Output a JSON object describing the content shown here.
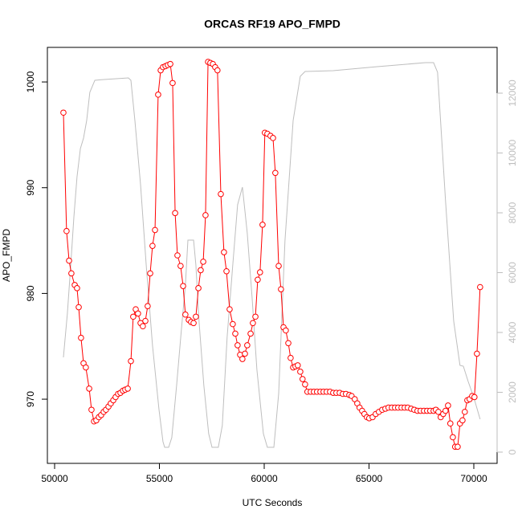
{
  "chart_data": {
    "type": "line",
    "title": "ORCAS RF19 APO_FMPD",
    "xlabel": "UTC Seconds",
    "ylabel": "APO_FMPD",
    "xlim": [
      49655,
      71111
    ],
    "xticks": [
      50000,
      55000,
      60000,
      65000,
      70000
    ],
    "ylim": [
      963.93,
      1003.27
    ],
    "yticks": [
      970,
      980,
      990,
      1000
    ],
    "y2lim": [
      -376,
      13530
    ],
    "y2ticks": [
      0,
      2000,
      4000,
      6000,
      8000,
      10000,
      12000
    ],
    "series": [
      {
        "color": "#bebebe",
        "axis": "y2",
        "markers": false,
        "x": [
          50420,
          50610,
          50770,
          50920,
          51070,
          51230,
          51380,
          51530,
          51680,
          51920,
          52370,
          53520,
          53640,
          53830,
          54100,
          54370,
          54670,
          54980,
          55170,
          55250,
          55440,
          55590,
          55820,
          56050,
          56240,
          56360,
          56630,
          56740,
          56890,
          57120,
          57350,
          57510,
          57810,
          58000,
          58230,
          58500,
          58730,
          58960,
          59190,
          59420,
          59650,
          59960,
          60150,
          60460,
          60690,
          60990,
          61380,
          61720,
          61950,
          63290,
          65400,
          67690,
          68080,
          68270,
          68650,
          69040,
          69340,
          69500,
          69730,
          70000,
          70300
        ],
        "values": [
          3168,
          4644,
          6255,
          7866,
          9208,
          10148,
          10497,
          11087,
          12027,
          12430,
          12456,
          12510,
          12430,
          11087,
          8940,
          6255,
          3570,
          1423,
          349,
          161,
          161,
          483,
          2228,
          4107,
          5584,
          7087,
          7087,
          6255,
          4376,
          2228,
          617,
          161,
          161,
          886,
          3839,
          6255,
          8268,
          8859,
          7329,
          5181,
          2765,
          617,
          161,
          161,
          1960,
          7060,
          11087,
          12564,
          12725,
          12752,
          12886,
          13020,
          13020,
          12698,
          8403,
          4376,
          2899,
          2872,
          2362,
          1826,
          1101
        ]
      },
      {
        "color": "#ff0000",
        "axis": "y",
        "markers": true,
        "x": [
          50420,
          50570,
          50690,
          50800,
          50960,
          51070,
          51150,
          51260,
          51380,
          51490,
          51650,
          51760,
          51880,
          51990,
          52110,
          52220,
          52340,
          52450,
          52570,
          52680,
          52800,
          52910,
          53030,
          53140,
          53260,
          53370,
          53490,
          53640,
          53750,
          53870,
          53980,
          54100,
          54210,
          54330,
          54440,
          54560,
          54670,
          54790,
          54940,
          55060,
          55170,
          55290,
          55400,
          55520,
          55630,
          55750,
          55860,
          56010,
          56130,
          56240,
          56400,
          56510,
          56630,
          56740,
          56860,
          56970,
          57090,
          57200,
          57320,
          57430,
          57550,
          57660,
          57770,
          57930,
          58080,
          58200,
          58350,
          58500,
          58620,
          58730,
          58850,
          58960,
          59080,
          59190,
          59350,
          59460,
          59580,
          59690,
          59800,
          59920,
          60030,
          60150,
          60300,
          60420,
          60530,
          60690,
          60800,
          60920,
          61030,
          61150,
          61260,
          61380,
          61490,
          61600,
          61720,
          61830,
          61950,
          62060,
          62220,
          62370,
          62520,
          62680,
          62830,
          62980,
          63140,
          63290,
          63440,
          63600,
          63750,
          63900,
          64060,
          64170,
          64320,
          64440,
          64550,
          64670,
          64780,
          64900,
          65010,
          65170,
          65320,
          65470,
          65630,
          65780,
          65930,
          66090,
          66240,
          66390,
          66550,
          66700,
          66850,
          67010,
          67160,
          67310,
          67460,
          67620,
          67770,
          67920,
          68080,
          68190,
          68310,
          68420,
          68540,
          68650,
          68770,
          68880,
          69000,
          69110,
          69230,
          69340,
          69460,
          69570,
          69690,
          69800,
          69920,
          70030,
          70150,
          70300
        ],
        "values": [
          997.1,
          985.9,
          983.1,
          981.9,
          980.8,
          980.5,
          978.7,
          975.8,
          973.4,
          973.0,
          971.0,
          969.0,
          967.9,
          968.0,
          968.3,
          968.5,
          968.8,
          969.0,
          969.3,
          969.6,
          969.9,
          970.2,
          970.5,
          970.6,
          970.8,
          970.9,
          971.0,
          973.6,
          977.8,
          978.5,
          978.1,
          977.2,
          976.9,
          977.4,
          978.8,
          981.9,
          984.5,
          986.0,
          998.8,
          1001.1,
          1001.4,
          1001.5,
          1001.6,
          1001.7,
          999.9,
          987.6,
          983.6,
          982.6,
          980.7,
          978.0,
          977.5,
          977.3,
          977.2,
          977.8,
          980.5,
          982.2,
          983.0,
          987.4,
          1001.9,
          1001.8,
          1001.7,
          1001.4,
          1001.1,
          989.4,
          983.9,
          982.1,
          978.5,
          977.1,
          976.2,
          975.1,
          974.2,
          973.8,
          974.3,
          975.1,
          976.2,
          977.2,
          977.8,
          981.3,
          982.0,
          986.5,
          995.2,
          995.1,
          994.9,
          994.7,
          991.4,
          982.6,
          980.4,
          976.8,
          976.5,
          975.3,
          973.9,
          973.0,
          973.1,
          973.2,
          972.6,
          971.9,
          971.4,
          970.7,
          970.7,
          970.7,
          970.7,
          970.7,
          970.7,
          970.7,
          970.7,
          970.6,
          970.6,
          970.6,
          970.5,
          970.5,
          970.4,
          970.3,
          970.0,
          969.6,
          969.2,
          968.9,
          968.6,
          968.3,
          968.2,
          968.3,
          968.6,
          968.8,
          969.0,
          969.1,
          969.2,
          969.2,
          969.2,
          969.2,
          969.2,
          969.2,
          969.2,
          969.1,
          969.0,
          968.9,
          968.9,
          968.9,
          968.9,
          968.9,
          968.9,
          969.0,
          968.8,
          968.3,
          968.6,
          968.9,
          969.4,
          967.7,
          966.4,
          965.5,
          965.5,
          967.7,
          968.0,
          968.8,
          969.9,
          970.0,
          970.3,
          970.2,
          974.3,
          980.6
        ]
      }
    ]
  }
}
